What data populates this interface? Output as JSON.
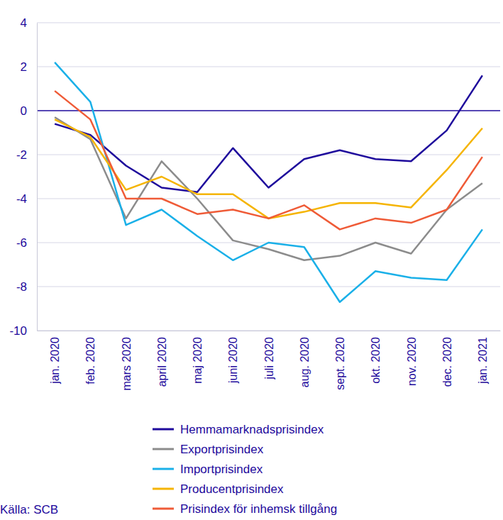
{
  "chart_data": {
    "type": "line",
    "source": "Källa: SCB",
    "categories": [
      "jan. 2020",
      "feb. 2020",
      "mars 2020",
      "april 2020",
      "maj 2020",
      "juni 2020",
      "juli 2020",
      "aug. 2020",
      "sept. 2020",
      "okt. 2020",
      "nov. 2020",
      "dec. 2020",
      "jan. 2021"
    ],
    "series": [
      {
        "name": "Hemmamarknadsprisindex",
        "color": "#1e0a9c",
        "values": [
          -0.6,
          -1.1,
          -2.5,
          -3.5,
          -3.7,
          -1.7,
          -3.5,
          -2.2,
          -1.8,
          -2.2,
          -2.3,
          -0.9,
          1.6
        ]
      },
      {
        "name": "Exportprisindex",
        "color": "#8c8c8c",
        "values": [
          -0.3,
          -1.3,
          -4.9,
          -2.3,
          -4.0,
          -5.9,
          -6.3,
          -6.8,
          -6.6,
          -6.0,
          -6.5,
          -4.5,
          -3.3
        ]
      },
      {
        "name": "Importprisindex",
        "color": "#1ab0e8",
        "values": [
          2.2,
          0.4,
          -5.2,
          -4.5,
          -5.7,
          -6.8,
          -6.0,
          -6.2,
          -8.7,
          -7.3,
          -7.6,
          -7.7,
          -5.4
        ]
      },
      {
        "name": "Producentprisindex",
        "color": "#f5b400",
        "values": [
          -0.4,
          -1.2,
          -3.6,
          -3.0,
          -3.8,
          -3.8,
          -4.9,
          -4.6,
          -4.2,
          -4.2,
          -4.4,
          -2.7,
          -0.8
        ]
      },
      {
        "name": "Prisindex för inhemsk tillgång",
        "color": "#ef5b37",
        "values": [
          0.9,
          -0.4,
          -4.0,
          -4.0,
          -4.7,
          -4.5,
          -4.9,
          -4.3,
          -5.4,
          -4.9,
          -5.1,
          -4.5,
          -2.1
        ]
      }
    ],
    "ylim": [
      -10,
      4
    ],
    "yticks": [
      -10,
      -8,
      -6,
      -4,
      -2,
      0,
      2,
      4
    ],
    "grid": true,
    "legend": "bottom"
  }
}
